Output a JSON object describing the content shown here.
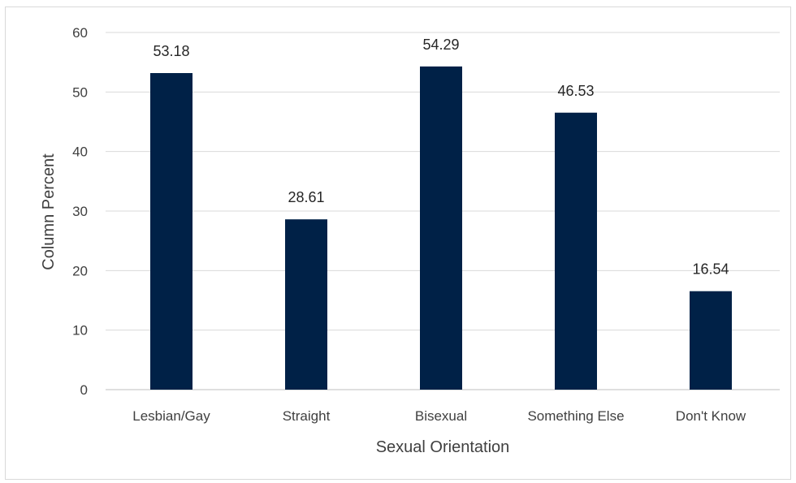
{
  "chart_data": {
    "type": "bar",
    "categories": [
      "Lesbian/Gay",
      "Straight",
      "Bisexual",
      "Something Else",
      "Don't Know"
    ],
    "values": [
      53.18,
      28.61,
      54.29,
      46.53,
      16.54
    ],
    "value_labels": [
      "53.18",
      "28.61",
      "54.29",
      "46.53",
      "16.54"
    ],
    "xlabel": "Sexual Orientation",
    "ylabel": "Column Percent",
    "ylim": [
      0,
      60
    ],
    "yticks": [
      0,
      10,
      20,
      30,
      40,
      50,
      60
    ],
    "grid": true,
    "legend": "none",
    "bar_color": "#002147"
  }
}
